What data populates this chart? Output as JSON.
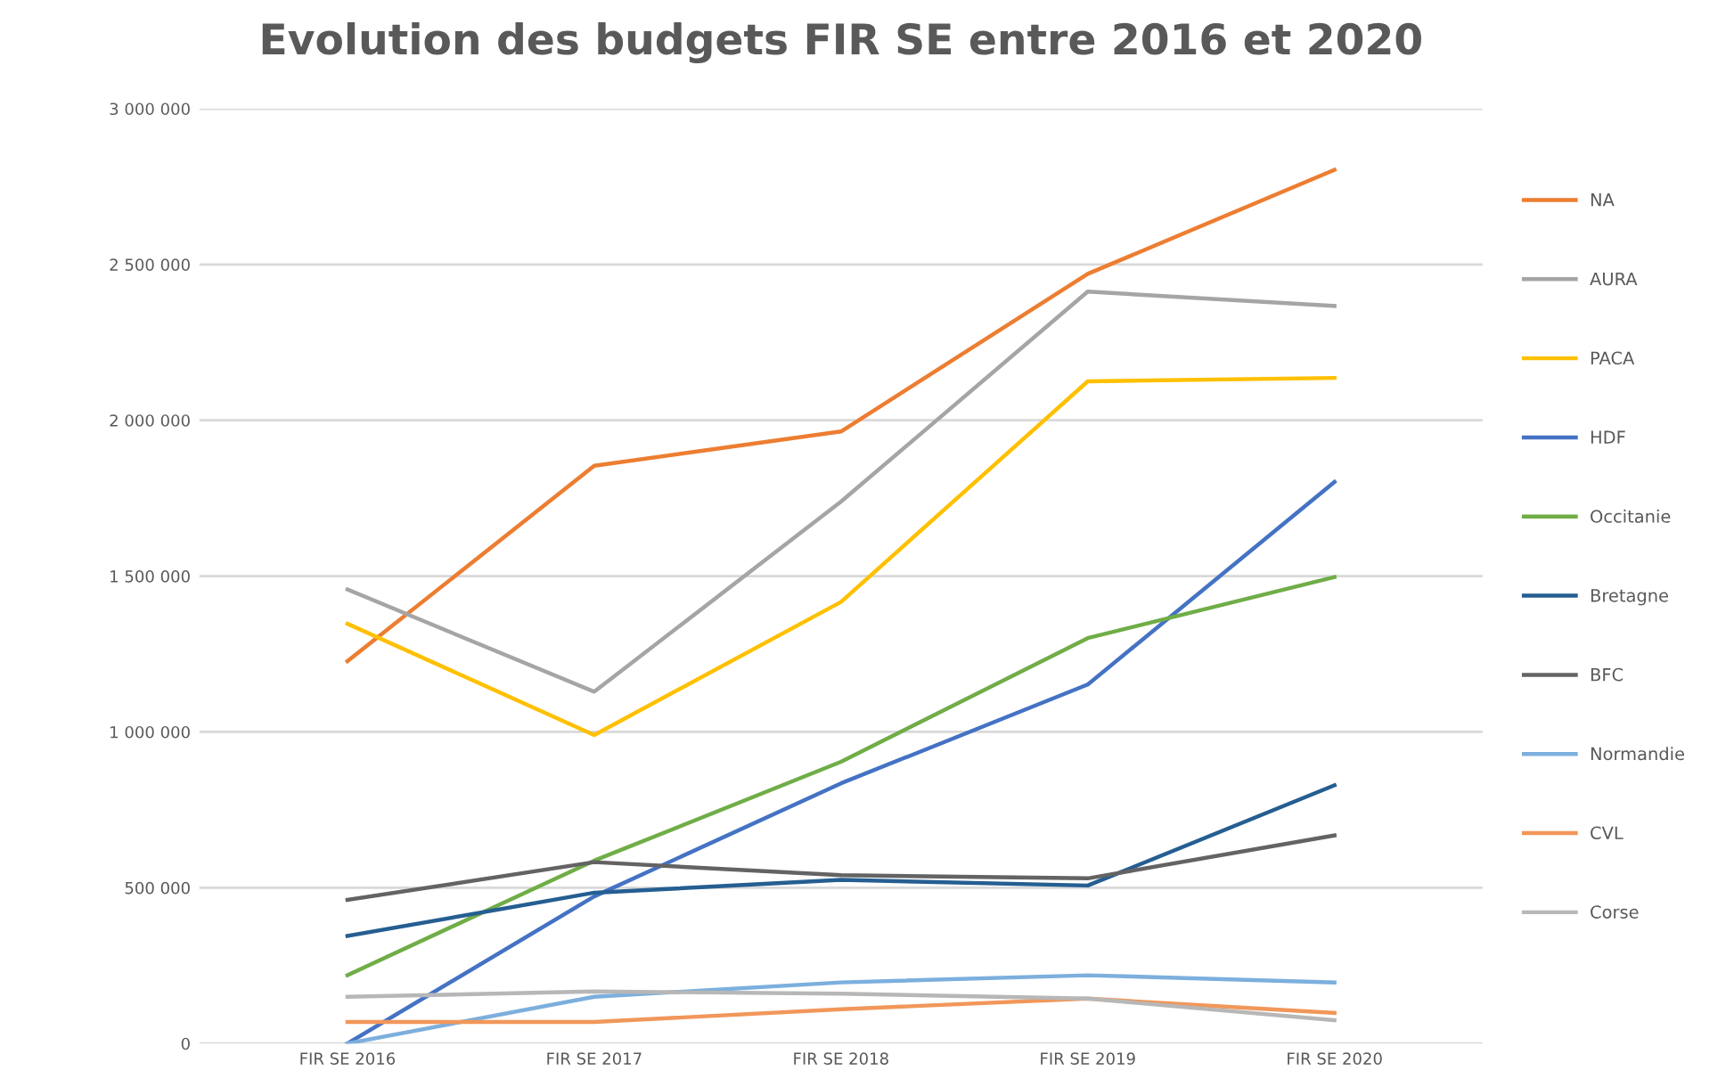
{
  "chart_data": {
    "type": "line",
    "title": "Evolution des budgets FIR SE entre 2016 et 2020",
    "categories": [
      "FIR SE 2016",
      "FIR SE 2017",
      "FIR SE 2018",
      "FIR SE 2019",
      "FIR SE 2020"
    ],
    "series": [
      {
        "name": "NA",
        "color": "#ed7d31",
        "values": [
          1227000,
          1854000,
          1964000,
          2470000,
          2804000
        ]
      },
      {
        "name": "AURA",
        "color": "#a5a5a5",
        "values": [
          1457000,
          1129000,
          1739000,
          2413000,
          2367000
        ]
      },
      {
        "name": "PACA",
        "color": "#ffc000",
        "values": [
          1347000,
          990000,
          1417000,
          2125000,
          2136000
        ]
      },
      {
        "name": "HDF",
        "color": "#4472c4",
        "values": [
          0,
          472000,
          835000,
          1152000,
          1802000
        ]
      },
      {
        "name": "Occitanie",
        "color": "#70ad47",
        "values": [
          219000,
          587000,
          904000,
          1301000,
          1497000
        ]
      },
      {
        "name": "Bretagne",
        "color": "#255e91",
        "values": [
          345000,
          484000,
          525000,
          507000,
          829000
        ]
      },
      {
        "name": "BFC",
        "color": "#636363",
        "values": [
          461000,
          582000,
          540000,
          530000,
          668000
        ]
      },
      {
        "name": "Normandie",
        "color": "#7cafdd",
        "values": [
          0,
          150000,
          196000,
          219000,
          196000
        ]
      },
      {
        "name": "CVL",
        "color": "#f1975a",
        "values": [
          69000,
          69000,
          110000,
          144000,
          98000
        ]
      },
      {
        "name": "Corse",
        "color": "#b7b7b7",
        "values": [
          150000,
          167000,
          160000,
          144000,
          75000
        ]
      }
    ],
    "ylim": [
      0,
      3000000
    ],
    "yticks": [
      {
        "value": 0,
        "label": "0"
      },
      {
        "value": 500000,
        "label": "500 000"
      },
      {
        "value": 1000000,
        "label": "1 000 000"
      },
      {
        "value": 1500000,
        "label": "1 500 000"
      },
      {
        "value": 2000000,
        "label": "2 000 000"
      },
      {
        "value": 2500000,
        "label": "2 500 000"
      },
      {
        "value": 3000000,
        "label": "3 000 000"
      }
    ],
    "grid": "y",
    "legend": "right",
    "marker": "none",
    "line_style": "solid"
  }
}
